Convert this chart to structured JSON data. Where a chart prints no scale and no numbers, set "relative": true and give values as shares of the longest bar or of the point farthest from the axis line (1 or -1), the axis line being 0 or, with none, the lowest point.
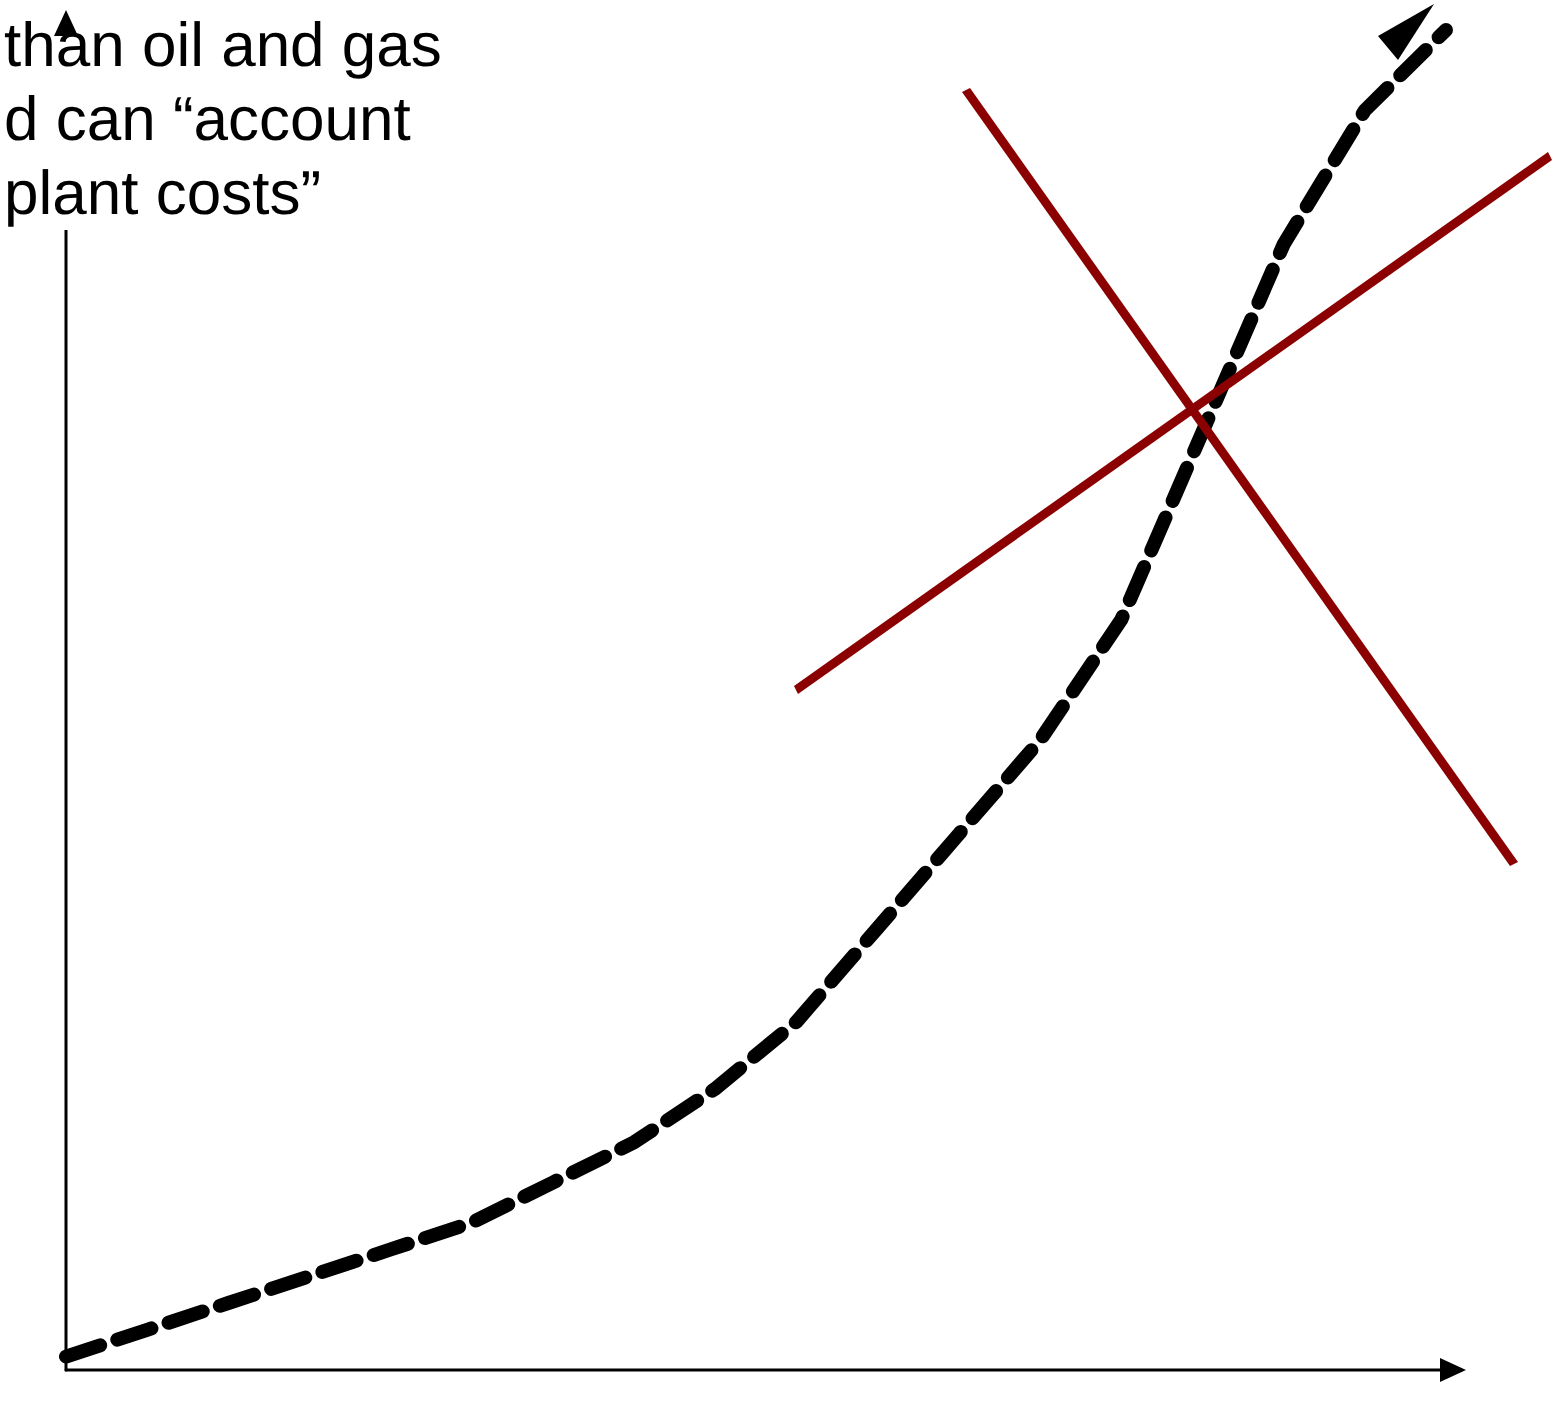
{
  "chart_data": {
    "type": "line",
    "relative": true,
    "categories": [
      null,
      null,
      null,
      null,
      null,
      null,
      null,
      null,
      null,
      null,
      null,
      null,
      null,
      null,
      null,
      null,
      null,
      null
    ],
    "series": [
      {
        "color": "#000000",
        "values": [
          0.01,
          0.03,
          0.05,
          0.07,
          0.09,
          0.11,
          0.14,
          0.17,
          0.21,
          0.26,
          0.33,
          0.4,
          0.47,
          0.56,
          0.7,
          0.84,
          0.94,
          1
        ]
      }
    ],
    "line_style": "dashed",
    "marker": "none",
    "grid": false,
    "annotations": [
      "than oil and gas\nd can “account\nplant costs”"
    ]
  }
}
